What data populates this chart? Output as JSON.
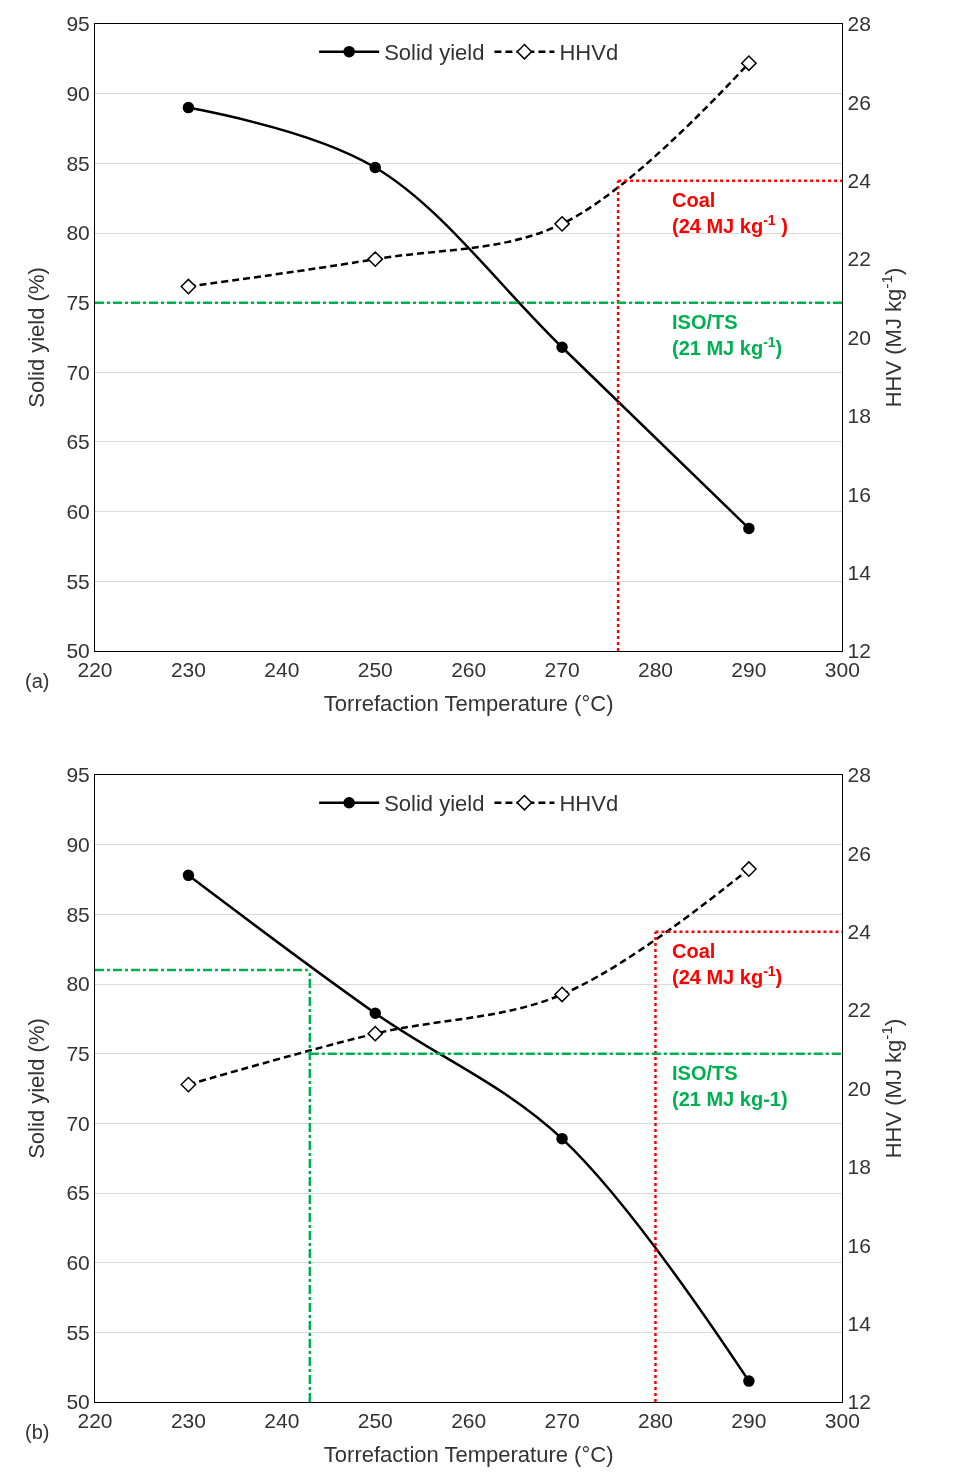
{
  "chart_data": [
    {
      "type": "line",
      "xlabel": "Torrefaction Temperature (°C)",
      "ylabel": "Solid yield (%)",
      "y2label": "HHV (MJ kg$^{-1}$)",
      "x": [
        230,
        250,
        270,
        290
      ],
      "series": [
        {
          "name": "Solid yield",
          "color": "#000000",
          "values": [
            89.0,
            84.7,
            71.8,
            58.8
          ],
          "marker": "circle",
          "line_style": "solid"
        },
        {
          "name": "HHVd",
          "color": "#000000",
          "values": [
            21.3,
            22.0,
            22.9,
            27.0
          ],
          "marker": "diamond",
          "line_style": "dashed",
          "axis": "y2"
        }
      ],
      "xlim": [
        220,
        300
      ],
      "xticks": [
        220,
        230,
        240,
        250,
        260,
        270,
        280,
        290,
        300
      ],
      "ylim": [
        50,
        95
      ],
      "yticks": [
        50,
        55,
        60,
        65,
        70,
        75,
        80,
        85,
        90,
        95
      ],
      "y2lim": [
        12,
        28
      ],
      "y2ticks": [
        12,
        14,
        16,
        18,
        20,
        22,
        24,
        26,
        28
      ],
      "ref_lines": [
        {
          "axis": "y2",
          "value": 24,
          "label": "Coal\n(24 MJ kg$^{-1}$ )",
          "color": "#ff0000",
          "line_style": "dotted"
        },
        {
          "axis": "x",
          "value": 276,
          "color": "#ff0000",
          "line_style": "dotted"
        },
        {
          "axis": "y",
          "value": 75,
          "label": "ISO/TS\n(21 MJ kg$^{-1}$)",
          "color": "#00b050",
          "line_style": "dashdot"
        }
      ],
      "annotations": [
        "(a)"
      ],
      "grid": "y",
      "legend": "top"
    },
    {
      "type": "line",
      "xlabel": "Torrefaction Temperature (°C)",
      "ylabel": "Solid yield (%)",
      "y2label": "HHV (MJ kg$^{-1}$)",
      "x": [
        230,
        250,
        270,
        290
      ],
      "series": [
        {
          "name": "Solid yield",
          "color": "#000000",
          "values": [
            87.8,
            77.9,
            68.9,
            51.5
          ],
          "marker": "circle",
          "line_style": "solid"
        },
        {
          "name": "HHVd",
          "color": "#000000",
          "values": [
            20.1,
            21.4,
            22.4,
            25.6
          ],
          "marker": "diamond",
          "line_style": "dashed",
          "axis": "y2"
        }
      ],
      "xlim": [
        220,
        300
      ],
      "xticks": [
        220,
        230,
        240,
        250,
        260,
        270,
        280,
        290,
        300
      ],
      "ylim": [
        50,
        95
      ],
      "yticks": [
        50,
        55,
        60,
        65,
        70,
        75,
        80,
        85,
        90,
        95
      ],
      "y2lim": [
        12,
        28
      ],
      "y2ticks": [
        12,
        14,
        16,
        18,
        20,
        22,
        24,
        26,
        28
      ],
      "ref_lines": [
        {
          "axis": "y2",
          "value": 24,
          "label": "Coal\n(24 MJ kg$^{-1}$)",
          "color": "#ff0000",
          "line_style": "dotted"
        },
        {
          "axis": "x",
          "value": 280,
          "color": "#ff0000",
          "line_style": "dotted"
        },
        {
          "axis": "y",
          "value": 75,
          "label": "ISO/TS\n(21 MJ kg-1)",
          "color": "#00b050",
          "line_style": "dashdot"
        },
        {
          "axis": "x",
          "value": 243,
          "color": "#00b050",
          "line_style": "dashdot"
        },
        {
          "axis": "y",
          "value": 81,
          "color": "#00b050",
          "line_style": "dashdot"
        }
      ],
      "annotations": [
        "(b)"
      ],
      "grid": "y",
      "legend": "top"
    }
  ]
}
